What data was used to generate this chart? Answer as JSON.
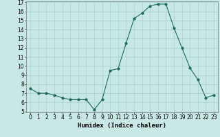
{
  "x": [
    0,
    1,
    2,
    3,
    4,
    5,
    6,
    7,
    8,
    9,
    10,
    11,
    12,
    13,
    14,
    15,
    16,
    17,
    18,
    19,
    20,
    21,
    22,
    23
  ],
  "y": [
    7.5,
    7.0,
    7.0,
    6.8,
    6.5,
    6.3,
    6.3,
    6.3,
    5.2,
    6.3,
    9.5,
    9.7,
    12.5,
    15.2,
    15.8,
    16.6,
    16.8,
    16.8,
    14.2,
    12.0,
    9.8,
    8.5,
    6.5,
    6.8
  ],
  "line_color": "#1a6b5a",
  "marker": "o",
  "marker_size": 2.0,
  "bg_color": "#c8e8e5",
  "grid_color": "#a8d0cc",
  "xlabel": "Humidex (Indice chaleur)",
  "ylim": [
    5,
    17
  ],
  "xlim": [
    -0.5,
    23.5
  ],
  "yticks": [
    5,
    6,
    7,
    8,
    9,
    10,
    11,
    12,
    13,
    14,
    15,
    16,
    17
  ],
  "xticks": [
    0,
    1,
    2,
    3,
    4,
    5,
    6,
    7,
    8,
    9,
    10,
    11,
    12,
    13,
    14,
    15,
    16,
    17,
    18,
    19,
    20,
    21,
    22,
    23
  ],
  "tick_fontsize": 5.5,
  "xlabel_fontsize": 6.5
}
